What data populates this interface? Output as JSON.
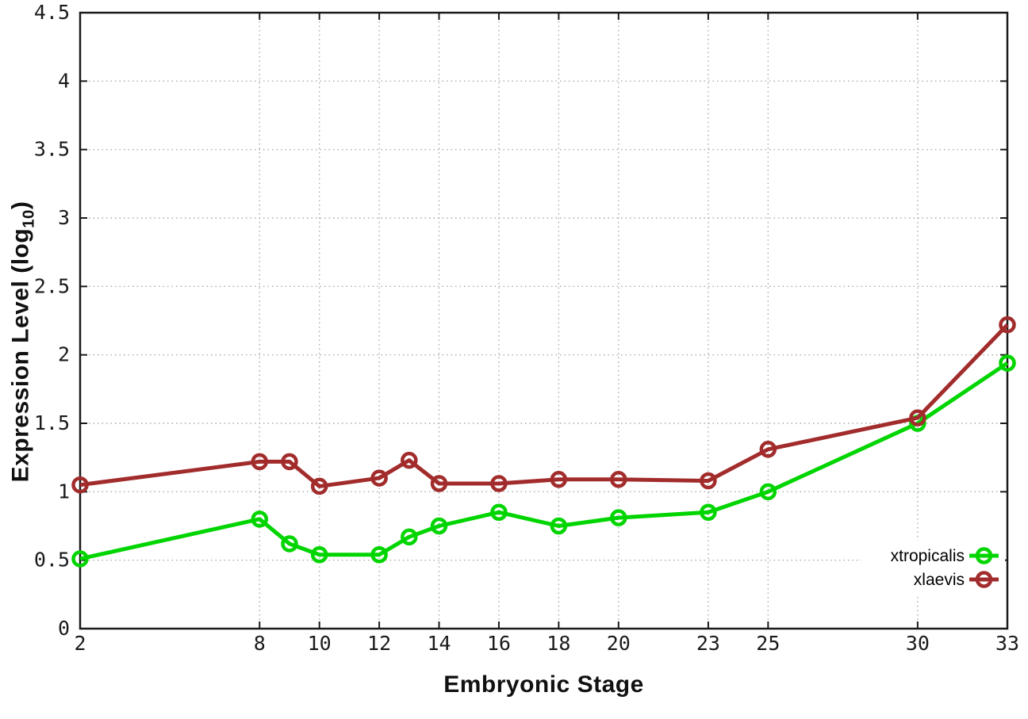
{
  "style": {
    "background": "#ffffff",
    "grid_color": "#aaaaaa",
    "axis_color": "#1a1a1a",
    "tick_text_color": "#1a1a1a",
    "legend_background": "#ffffff",
    "series_green": "#00d500",
    "series_dark_red": "#a22c2c"
  },
  "chart_data": {
    "type": "line",
    "title": "",
    "xlabel": "Embryonic Stage",
    "ylabel": "Expression Level (log10)",
    "ylabel_parts": {
      "base": "Expression Level (log",
      "sub": "10",
      "close": ")"
    },
    "xlim": [
      2,
      33
    ],
    "ylim": [
      0,
      4.5
    ],
    "grid": true,
    "legend_position": "inside-bottom-right",
    "x_ticks": [
      {
        "v": 2,
        "label": "2"
      },
      {
        "v": 8,
        "label": "8"
      },
      {
        "v": 10,
        "label": "10"
      },
      {
        "v": 12,
        "label": "12"
      },
      {
        "v": 14,
        "label": "14"
      },
      {
        "v": 16,
        "label": "16"
      },
      {
        "v": 18,
        "label": "18"
      },
      {
        "v": 20,
        "label": "20"
      },
      {
        "v": 23,
        "label": "23"
      },
      {
        "v": 25,
        "label": "25"
      },
      {
        "v": 30,
        "label": "30"
      },
      {
        "v": 33,
        "label": "33"
      }
    ],
    "y_ticks": [
      {
        "v": 0,
        "label": "0"
      },
      {
        "v": 0.5,
        "label": "0.5"
      },
      {
        "v": 1,
        "label": "1"
      },
      {
        "v": 1.5,
        "label": "1.5"
      },
      {
        "v": 2,
        "label": "2"
      },
      {
        "v": 2.5,
        "label": "2.5"
      },
      {
        "v": 3,
        "label": "3"
      },
      {
        "v": 3.5,
        "label": "3.5"
      },
      {
        "v": 4,
        "label": "4"
      },
      {
        "v": 4.5,
        "label": "4.5"
      }
    ],
    "x": [
      2,
      8,
      9,
      10,
      12,
      13,
      14,
      16,
      18,
      20,
      23,
      25,
      30,
      33
    ],
    "series": [
      {
        "name": "xtropicalis",
        "color": "#00d500",
        "marker": "open-circle",
        "values": [
          0.51,
          0.8,
          0.62,
          0.54,
          0.54,
          0.67,
          0.75,
          0.85,
          0.75,
          0.81,
          0.85,
          1.0,
          1.5,
          1.94
        ]
      },
      {
        "name": "xlaevis",
        "color": "#a22c2c",
        "marker": "open-circle",
        "values": [
          1.05,
          1.22,
          1.22,
          1.04,
          1.1,
          1.23,
          1.06,
          1.06,
          1.09,
          1.09,
          1.08,
          1.31,
          1.54,
          2.22
        ]
      }
    ]
  }
}
